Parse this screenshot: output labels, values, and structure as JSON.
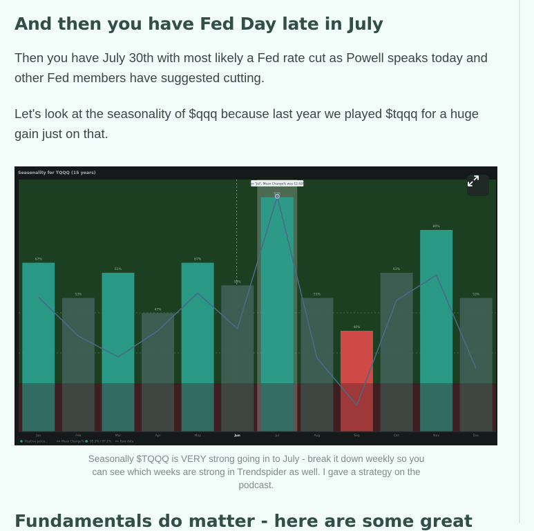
{
  "article": {
    "heading": "And then you have Fed Day late in July",
    "para1": "Then you have July 30th with most likely a Fed rate cut as Powell speaks today and other Fed members have suggested cutting.",
    "para2": "Let's look at the seasonality of $qqq because last year we played $tqqq for a huge gain just on that.",
    "caption": "Seasonally $TQQQ is VERY strong going in to July - break it down weekly so you can see which weeks are strong in Trendspider as well. I gave a strategy on the podcast.",
    "next_heading": "Fundamentals do matter - here are some great"
  },
  "figure": {
    "expand_icon": "expand-icon"
  },
  "chart_data": {
    "type": "bar",
    "title": "Seasonality for TQQQ (15 years)",
    "tooltip": "For \"Jul\", Mean Change% was 12.43%",
    "categories": [
      "Jan",
      "Feb",
      "Mar",
      "Apr",
      "May",
      "Jun",
      "Jul",
      "Aug",
      "Sep",
      "Oct",
      "Nov",
      "Dec"
    ],
    "selected_category": "Jun",
    "highlight_category": "Jul",
    "series": [
      {
        "name": "Positive perce...",
        "type": "bar",
        "values": [
          67,
          53,
          63,
          47,
          67,
          58,
          93,
          53,
          40,
          63,
          80,
          53
        ],
        "labels": [
          "67%",
          "53%",
          "63%",
          "47%",
          "67%",
          "58%",
          "93%",
          "53%",
          "40%",
          "63%",
          "80%",
          "53%"
        ]
      },
      {
        "name": "Mean Change%",
        "type": "line",
        "values": [
          2.8,
          -0.9,
          -2.9,
          -0.4,
          3.2,
          -0.2,
          12.4,
          -3.0,
          -7.5,
          2.5,
          4.9,
          -4.0
        ]
      }
    ],
    "legend": [
      {
        "label": "Positive perce...",
        "color": "#2a9d8a"
      },
      {
        "label": "Mean Change%",
        "color": "#4a6a86"
      },
      {
        "label": "95.5% / 97.1%",
        "color": "#2a9d8a"
      },
      {
        "label": "Raw data",
        "color": "#5a6a66"
      }
    ],
    "bar_ylim": [
      0,
      100
    ],
    "line_ylim": [
      -10,
      14
    ],
    "colors": {
      "positive_bar": "#2a9d8a",
      "negative_bar": "#d94a4a",
      "muted_bar": "#3f5f55",
      "green_band": "#1b3f20",
      "red_band": "#3e1e20",
      "line": "#4a6a86"
    }
  }
}
